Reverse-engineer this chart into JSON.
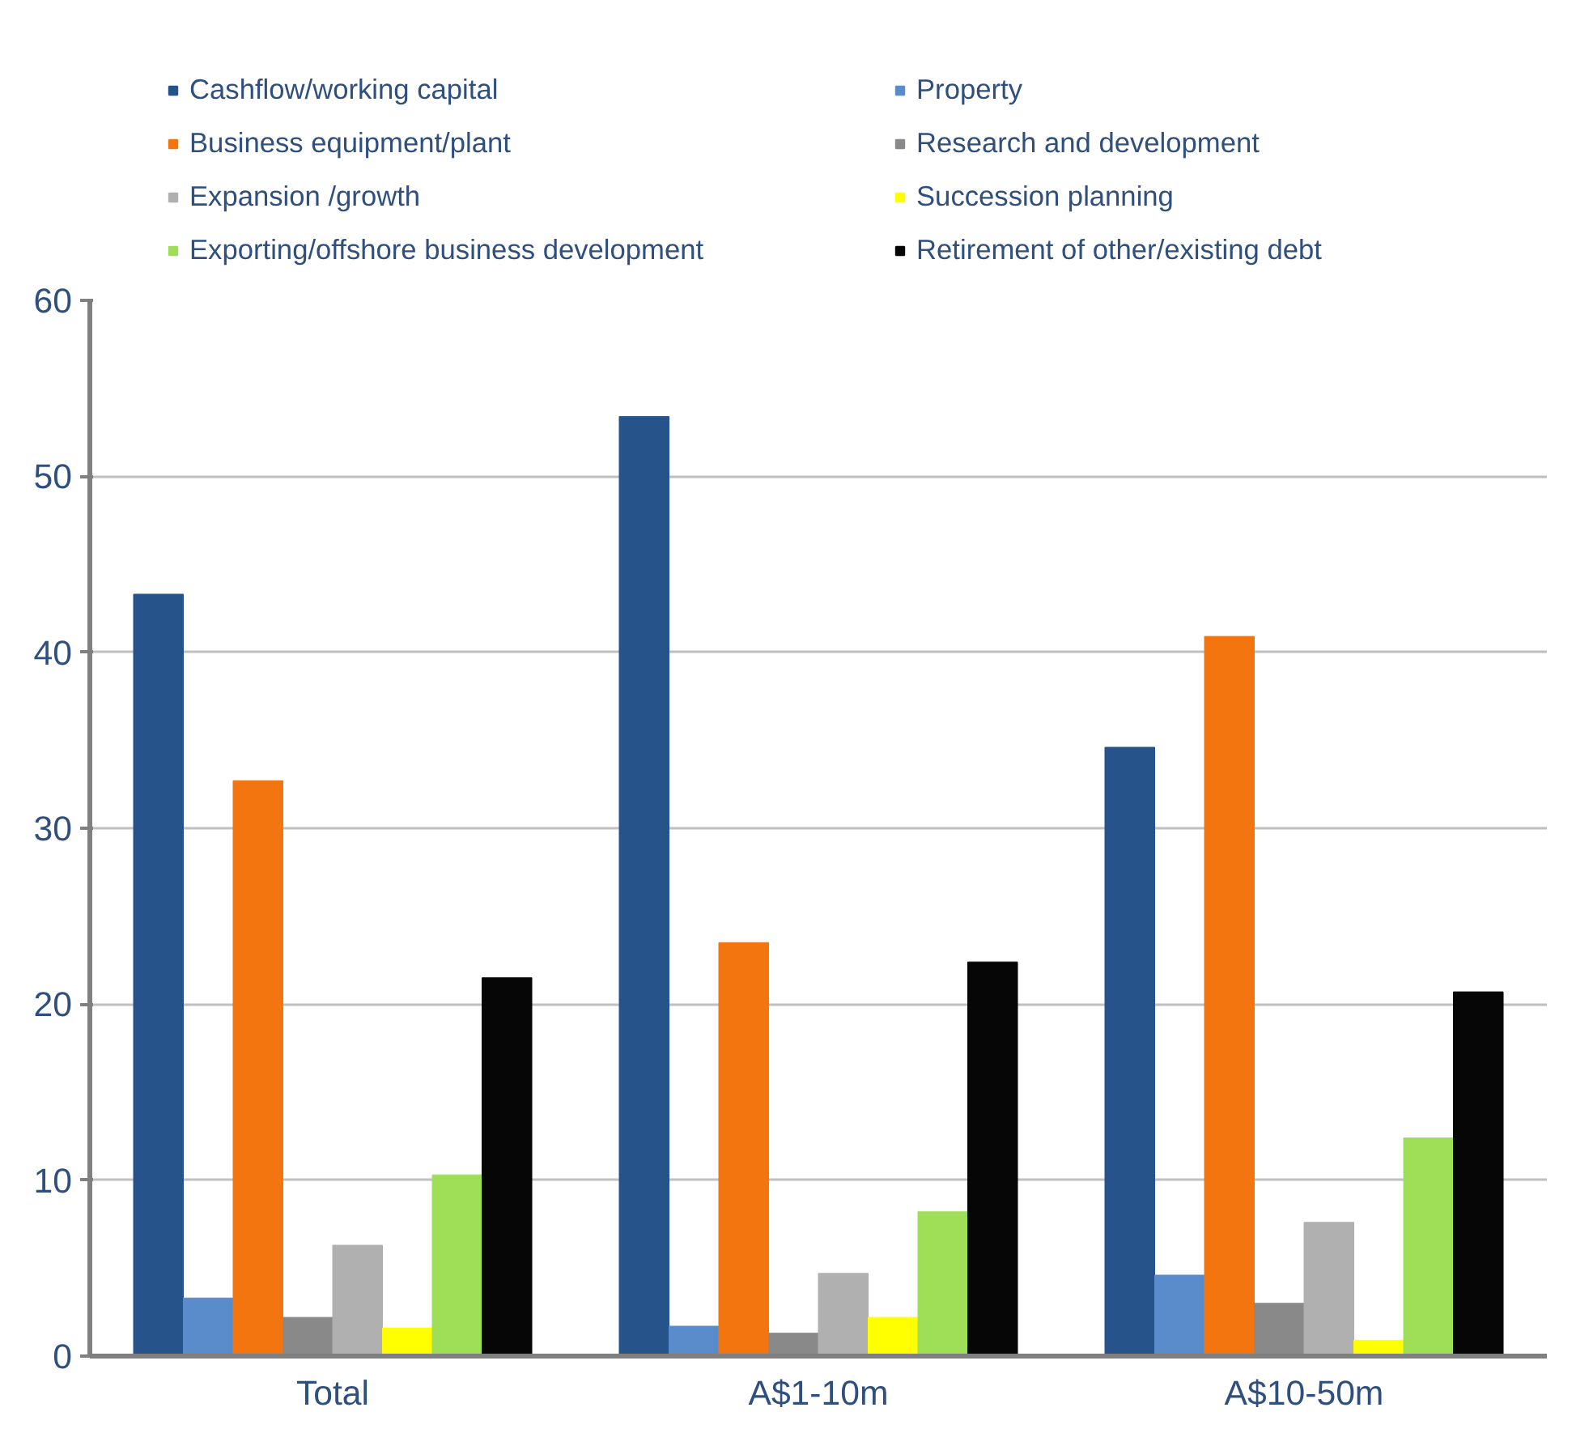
{
  "chart_data": {
    "type": "bar",
    "categories": [
      "Total",
      "A$1-10m",
      "A$10-50m"
    ],
    "series": [
      {
        "name": "Cashflow/working capital",
        "color": "#26538a",
        "values": [
          43.3,
          53.4,
          34.6
        ]
      },
      {
        "name": "Property",
        "color": "#5a8ccc",
        "values": [
          3.3,
          1.7,
          4.6
        ]
      },
      {
        "name": "Business equipment/plant",
        "color": "#f27510",
        "values": [
          32.7,
          23.5,
          40.9
        ]
      },
      {
        "name": "Research and development",
        "color": "#898989",
        "values": [
          2.2,
          1.3,
          3.0
        ]
      },
      {
        "name": "Expansion /growth",
        "color": "#b0b0b0",
        "values": [
          6.3,
          4.7,
          7.6
        ]
      },
      {
        "name": "Succession planning",
        "color": "#ffff00",
        "values": [
          1.6,
          2.2,
          0.9
        ]
      },
      {
        "name": "Exporting/offshore business development",
        "color": "#9fdf58",
        "values": [
          10.3,
          8.2,
          12.4
        ]
      },
      {
        "name": "Retirement of other/existing debt",
        "color": "#060606",
        "values": [
          21.5,
          22.4,
          20.7
        ]
      }
    ],
    "ylim": [
      0,
      60
    ],
    "yticks": [
      0,
      10,
      20,
      30,
      40,
      50,
      60
    ],
    "grid": "y",
    "legend": "top"
  }
}
